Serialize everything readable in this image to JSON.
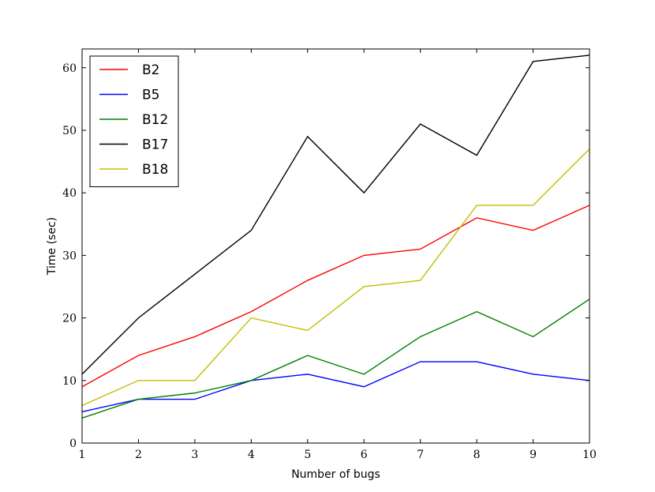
{
  "chart_data": {
    "type": "line",
    "title": "",
    "xlabel": "Number of bugs",
    "ylabel": "Time (sec)",
    "x": [
      1,
      2,
      3,
      4,
      5,
      6,
      7,
      8,
      9,
      10
    ],
    "xlim": [
      1,
      10
    ],
    "ylim": [
      0,
      63
    ],
    "xticks": [
      "1",
      "2",
      "3",
      "4",
      "5",
      "6",
      "7",
      "8",
      "9",
      "10"
    ],
    "yticks": [
      "0",
      "10",
      "20",
      "30",
      "40",
      "50",
      "60"
    ],
    "grid": false,
    "legend_position": "top-left",
    "series": [
      {
        "name": "B2",
        "color": "#ff0000",
        "values": [
          9,
          14,
          17,
          21,
          26,
          30,
          31,
          36,
          34,
          38
        ]
      },
      {
        "name": "B5",
        "color": "#0000ff",
        "values": [
          5,
          7,
          7,
          10,
          11,
          9,
          13,
          13,
          11,
          10
        ]
      },
      {
        "name": "B12",
        "color": "#008000",
        "values": [
          4,
          7,
          8,
          10,
          14,
          11,
          17,
          21,
          17,
          23
        ]
      },
      {
        "name": "B17",
        "color": "#000000",
        "values": [
          11,
          20,
          27,
          34,
          49,
          40,
          51,
          46,
          61,
          62
        ]
      },
      {
        "name": "B18",
        "color": "#bfbf00",
        "values": [
          6,
          10,
          10,
          20,
          18,
          25,
          26,
          38,
          38,
          47
        ]
      }
    ]
  }
}
